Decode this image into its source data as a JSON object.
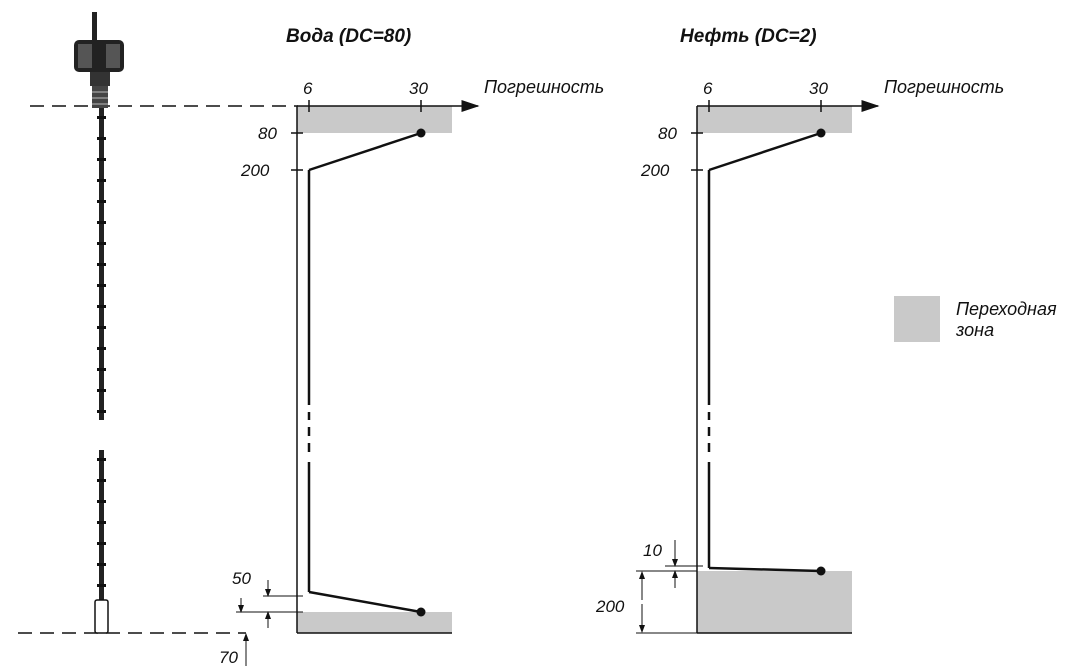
{
  "colors": {
    "transition_zone": "#c9c9c9",
    "ink": "#111111",
    "background": "#ffffff"
  },
  "charts": {
    "water": {
      "title": "Вода (DC=80)",
      "axis_label": "Погрешность",
      "x_ticks": [
        "6",
        "30"
      ],
      "depth_labels": [
        "80",
        "200"
      ],
      "bottom_dimensions": [
        "50",
        "70"
      ]
    },
    "oil": {
      "title": "Нефть (DC=2)",
      "axis_label": "Погрешность",
      "x_ticks": [
        "6",
        "30"
      ],
      "depth_labels": [
        "80",
        "200"
      ],
      "bottom_dimensions": [
        "10",
        "200"
      ]
    }
  },
  "legend": {
    "line1": "Переходная",
    "line2": "зона"
  },
  "probe": {
    "icon": "level-transmitter-probe-icon"
  }
}
